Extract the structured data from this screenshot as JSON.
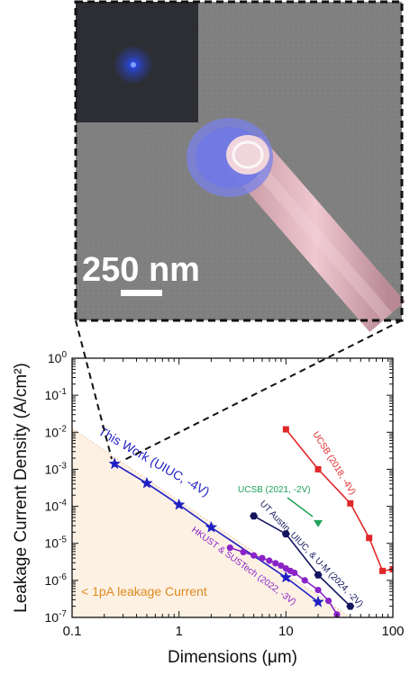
{
  "micrograph": {
    "scale_bar_label": "250 nm",
    "specimen_color": "#e7b9c2",
    "tip_glow_color": "#6f78e6",
    "inset_spot_color": "#2b4cff"
  },
  "chart_data": {
    "type": "scatter",
    "title": "",
    "xlabel": "Dimensions (μm)",
    "ylabel": "Leakage Current Density (A/cm²)",
    "x_scale": "log",
    "y_scale": "log",
    "xlim": [
      0.1,
      100
    ],
    "ylim": [
      1e-07,
      1
    ],
    "grid": false,
    "x_ticks": [
      {
        "v": 0.1,
        "label": "0.1"
      },
      {
        "v": 1,
        "label": "1"
      },
      {
        "v": 10,
        "label": "10"
      },
      {
        "v": 100,
        "label": "100"
      }
    ],
    "y_ticks": [
      {
        "v": 1,
        "b": "10",
        "e": "0"
      },
      {
        "v": 0.1,
        "b": "10",
        "e": "-1"
      },
      {
        "v": 0.01,
        "b": "10",
        "e": "-2"
      },
      {
        "v": 0.001,
        "b": "10",
        "e": "-3"
      },
      {
        "v": 0.0001,
        "b": "10",
        "e": "-4"
      },
      {
        "v": 1e-05,
        "b": "10",
        "e": "-5"
      },
      {
        "v": 1e-06,
        "b": "10",
        "e": "-6"
      },
      {
        "v": 1e-07,
        "b": "10",
        "e": "-7"
      }
    ],
    "shaded_region": {
      "label": "< 1pA leakage Current",
      "color": "#fdf1e4",
      "line_color": "#e9c9a0",
      "text_color": "#e08a1e",
      "boundary": [
        [
          0.1,
          0.0127
        ],
        [
          40,
          1e-07
        ]
      ]
    },
    "series": [
      {
        "name": "This Work (UIUC, -4V)",
        "color": "#1f1fc4",
        "marker": "star",
        "x": [
          0.25,
          0.5,
          1,
          2,
          10,
          20
        ],
        "y": [
          0.0014,
          0.00042,
          0.00011,
          2.7e-05,
          1.2e-06,
          2.6e-07
        ]
      },
      {
        "name": "HKUST & SUSTech (2022, -3V)",
        "color": "#8a22c8",
        "marker": "circle",
        "x": [
          3,
          4,
          5,
          6,
          7,
          8,
          9,
          10,
          11,
          12,
          15,
          20,
          25,
          30
        ],
        "y": [
          7.6e-06,
          5.8e-06,
          4.7e-06,
          4e-06,
          3.4e-06,
          2.9e-06,
          2.5e-06,
          2.1e-06,
          1.8e-06,
          1.6e-06,
          1e-06,
          5.5e-07,
          2.8e-07,
          1.2e-07
        ]
      },
      {
        "name": "UT Austin, UIUC, & U-M (2024, -2V)",
        "color": "#13155e",
        "marker": "hexagon",
        "x": [
          5,
          10,
          20,
          40
        ],
        "y": [
          5.5e-05,
          1.8e-05,
          1.4e-06,
          2e-07
        ]
      },
      {
        "name": "UCSB (2018, -4V)",
        "color": "#e02828",
        "marker": "square",
        "x": [
          10,
          20,
          40,
          60,
          80,
          100
        ],
        "y": [
          0.012,
          0.001,
          0.00012,
          1.4e-05,
          1.8e-06,
          2e-06
        ]
      },
      {
        "name": "UCSB (2021, -2V)",
        "color": "#1fa25a",
        "marker": "triangle",
        "x": [
          20
        ],
        "y": [
          3.4e-05
        ]
      }
    ]
  }
}
